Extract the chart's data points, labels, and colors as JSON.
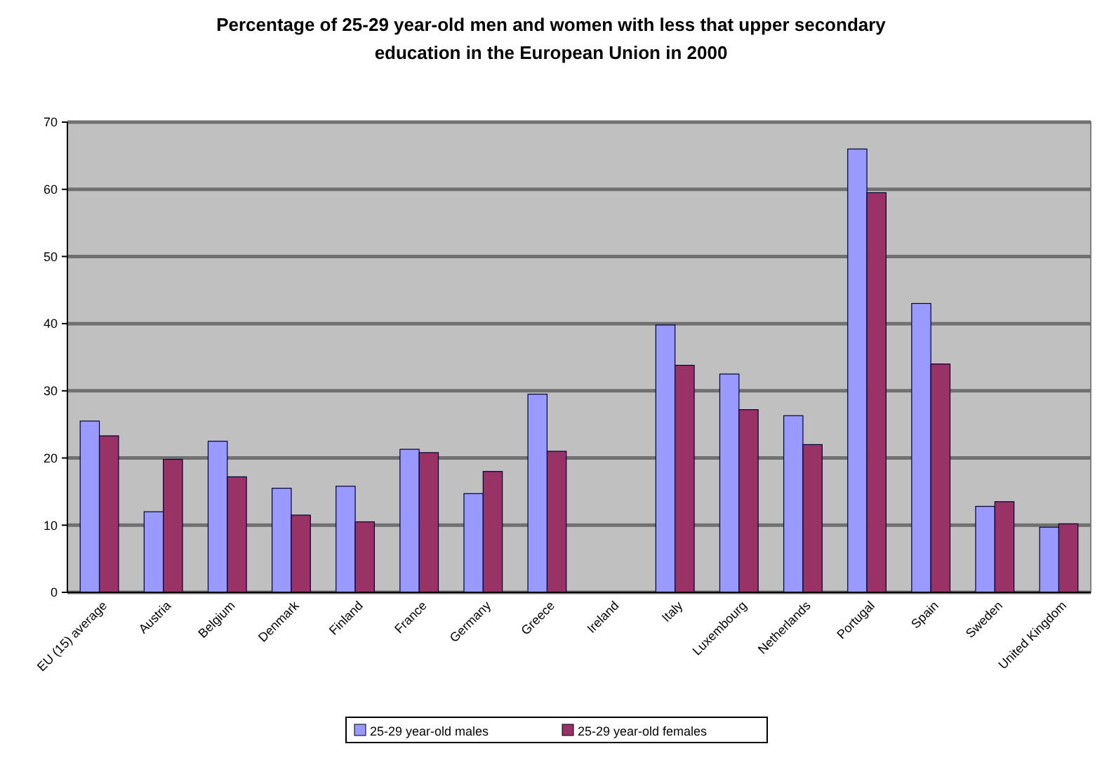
{
  "chart_data": {
    "type": "bar",
    "title": "Percentage of 25-29 year-old men and women with less that upper secondary education in the European Union in 2000",
    "categories": [
      "EU (15) average",
      "Austria",
      "Belgium",
      "Denmark",
      "Finland",
      "France",
      "Germany",
      "Greece",
      "Ireland",
      "Italy",
      "Luxembourg",
      "Netherlands",
      "Portugal",
      "Spain",
      "Sweden",
      "United Kingdom"
    ],
    "series": [
      {
        "name": "25-29 year-old males",
        "color": "#9999ff",
        "values": [
          25.5,
          12,
          22.5,
          15.5,
          15.8,
          21.3,
          14.7,
          29.5,
          null,
          39.8,
          32.5,
          26.3,
          66,
          43,
          12.8,
          9.7
        ]
      },
      {
        "name": "25-29 year-old females",
        "color": "#993366",
        "values": [
          23.3,
          19.8,
          17.2,
          11.5,
          10.5,
          20.8,
          18,
          21,
          null,
          33.8,
          27.2,
          22,
          59.5,
          34,
          13.5,
          10.2
        ]
      }
    ],
    "ylim": [
      0,
      70
    ],
    "yticks": [
      0,
      10,
      20,
      30,
      40,
      50,
      60,
      70
    ],
    "grid": "y",
    "legend": "bottom"
  }
}
